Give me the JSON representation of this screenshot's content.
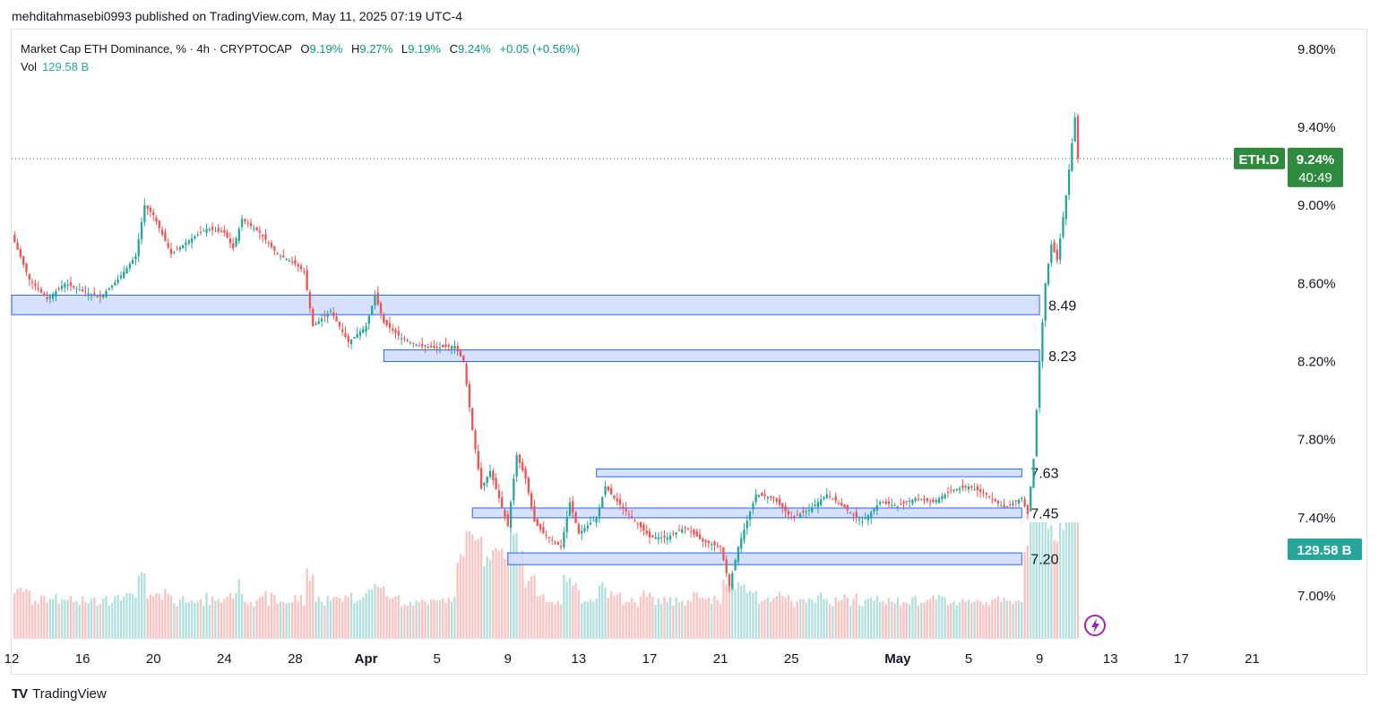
{
  "header": {
    "published_by": "mehditahmasebi0993 published on TradingView.com, May 11, 2025 07:19 UTC-4"
  },
  "legend": {
    "symbol": "Market Cap ETH Dominance, % · 4h · CRYPTOCAP",
    "open_label": "O",
    "open": "9.19%",
    "high_label": "H",
    "high": "9.27%",
    "low_label": "L",
    "low": "9.19%",
    "close_label": "C",
    "close": "9.24%",
    "change": "+0.05 (+0.56%)",
    "vol_label": "Vol",
    "vol_value": "129.58 B"
  },
  "badges": {
    "ticker": "ETH.D",
    "price": "9.24%",
    "countdown": "40:49",
    "volume": "129.58 B"
  },
  "footer": {
    "brand": "TradingView",
    "logo": "TV"
  },
  "colors": {
    "up": "#26a69a",
    "down": "#ef5350",
    "zone_fill": "#cfdcff",
    "zone_stroke": "#2962ff",
    "badge_green": "#2e8b3e",
    "vol_badge": "#26a69a"
  },
  "chart_data": {
    "type": "candlestick",
    "title": "Market Cap ETH Dominance, % · 4h · CRYPTOCAP",
    "y_axis": {
      "range": [
        6.78,
        9.9
      ],
      "ticks": [
        "9.80%",
        "9.40%",
        "9.00%",
        "8.60%",
        "8.20%",
        "7.80%",
        "7.40%",
        "7.00%"
      ],
      "tick_values": [
        9.8,
        9.4,
        9.0,
        8.6,
        8.2,
        7.8,
        7.4,
        7.0
      ]
    },
    "x_axis": {
      "start_date": "2025-03-12",
      "end_date": "2025-05-23",
      "tick_labels": [
        "12",
        "16",
        "20",
        "24",
        "28",
        "Apr",
        "5",
        "9",
        "13",
        "17",
        "21",
        "25",
        "May",
        "5",
        "9",
        "13",
        "17",
        "21"
      ],
      "tick_dates": [
        "2025-03-12",
        "2025-03-16",
        "2025-03-20",
        "2025-03-24",
        "2025-03-28",
        "2025-04-01",
        "2025-04-05",
        "2025-04-09",
        "2025-04-13",
        "2025-04-17",
        "2025-04-21",
        "2025-04-25",
        "2025-05-01",
        "2025-05-05",
        "2025-05-09",
        "2025-05-13",
        "2025-05-17",
        "2025-05-21"
      ]
    },
    "last_price": 9.24,
    "close_path": [
      [
        "2025-03-12",
        8.85
      ],
      [
        "2025-03-13",
        8.62
      ],
      [
        "2025-03-14",
        8.52
      ],
      [
        "2025-03-15",
        8.6
      ],
      [
        "2025-03-16",
        8.56
      ],
      [
        "2025-03-17",
        8.53
      ],
      [
        "2025-03-18",
        8.62
      ],
      [
        "2025-03-19",
        8.74
      ],
      [
        "2025-03-19T12",
        9.0
      ],
      [
        "2025-03-20",
        8.95
      ],
      [
        "2025-03-21",
        8.75
      ],
      [
        "2025-03-22",
        8.82
      ],
      [
        "2025-03-23",
        8.88
      ],
      [
        "2025-03-24",
        8.86
      ],
      [
        "2025-03-24T12",
        8.78
      ],
      [
        "2025-03-25",
        8.93
      ],
      [
        "2025-03-26",
        8.86
      ],
      [
        "2025-03-27",
        8.75
      ],
      [
        "2025-03-28",
        8.7
      ],
      [
        "2025-03-28T12",
        8.66
      ],
      [
        "2025-03-29",
        8.38
      ],
      [
        "2025-03-30",
        8.46
      ],
      [
        "2025-03-31",
        8.3
      ],
      [
        "2025-04-01",
        8.38
      ],
      [
        "2025-04-01T12",
        8.54
      ],
      [
        "2025-04-02",
        8.4
      ],
      [
        "2025-04-03",
        8.32
      ],
      [
        "2025-04-04",
        8.28
      ],
      [
        "2025-04-05",
        8.27
      ],
      [
        "2025-04-06",
        8.28
      ],
      [
        "2025-04-06T12",
        8.2
      ],
      [
        "2025-04-07",
        7.85
      ],
      [
        "2025-04-07T12",
        7.55
      ],
      [
        "2025-04-08",
        7.64
      ],
      [
        "2025-04-09",
        7.36
      ],
      [
        "2025-04-09T12",
        7.72
      ],
      [
        "2025-04-10",
        7.6
      ],
      [
        "2025-04-10T12",
        7.38
      ],
      [
        "2025-04-11",
        7.32
      ],
      [
        "2025-04-12",
        7.25
      ],
      [
        "2025-04-12T12",
        7.48
      ],
      [
        "2025-04-13",
        7.32
      ],
      [
        "2025-04-14",
        7.4
      ],
      [
        "2025-04-14T12",
        7.56
      ],
      [
        "2025-04-15",
        7.5
      ],
      [
        "2025-04-16",
        7.4
      ],
      [
        "2025-04-17",
        7.3
      ],
      [
        "2025-04-18",
        7.3
      ],
      [
        "2025-04-19",
        7.35
      ],
      [
        "2025-04-20",
        7.28
      ],
      [
        "2025-04-21",
        7.25
      ],
      [
        "2025-04-21T12",
        7.05
      ],
      [
        "2025-04-22",
        7.25
      ],
      [
        "2025-04-23",
        7.52
      ],
      [
        "2025-04-24",
        7.5
      ],
      [
        "2025-04-25",
        7.4
      ],
      [
        "2025-04-26",
        7.44
      ],
      [
        "2025-04-27",
        7.52
      ],
      [
        "2025-04-28",
        7.45
      ],
      [
        "2025-04-29",
        7.38
      ],
      [
        "2025-04-30",
        7.48
      ],
      [
        "2025-05-01",
        7.46
      ],
      [
        "2025-05-02",
        7.5
      ],
      [
        "2025-05-03",
        7.48
      ],
      [
        "2025-05-04",
        7.54
      ],
      [
        "2025-05-05",
        7.56
      ],
      [
        "2025-05-06",
        7.52
      ],
      [
        "2025-05-07",
        7.45
      ],
      [
        "2025-05-08",
        7.5
      ],
      [
        "2025-05-08T08",
        7.42
      ],
      [
        "2025-05-08T16",
        7.7
      ],
      [
        "2025-05-09",
        8.2
      ],
      [
        "2025-05-09T08",
        8.6
      ],
      [
        "2025-05-09T16",
        8.8
      ],
      [
        "2025-05-10",
        8.72
      ],
      [
        "2025-05-10T12",
        9.05
      ],
      [
        "2025-05-11",
        9.45
      ],
      [
        "2025-05-11T04",
        9.24
      ]
    ],
    "volume_unit": "B",
    "zones": [
      {
        "label": "8.49",
        "low": 8.44,
        "high": 8.54,
        "from": "2025-03-12",
        "to": "2025-05-09"
      },
      {
        "label": "8.23",
        "low": 8.2,
        "high": 8.26,
        "from": "2025-04-02",
        "to": "2025-05-09"
      },
      {
        "label": "7.63",
        "low": 7.61,
        "high": 7.65,
        "from": "2025-04-14",
        "to": "2025-05-08"
      },
      {
        "label": "7.45",
        "low": 7.4,
        "high": 7.45,
        "from": "2025-04-07",
        "to": "2025-05-08"
      },
      {
        "label": "7.20",
        "low": 7.16,
        "high": 7.22,
        "from": "2025-04-09",
        "to": "2025-05-08"
      }
    ]
  }
}
